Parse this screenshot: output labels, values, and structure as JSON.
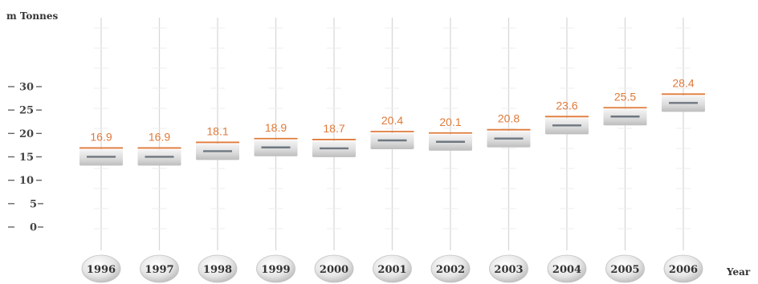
{
  "chart_data": {
    "type": "bar",
    "ylabel": "m Tonnes",
    "xlabel": "Year",
    "categories": [
      "1996",
      "1997",
      "1998",
      "1999",
      "2000",
      "2001",
      "2002",
      "2003",
      "2004",
      "2005",
      "2006"
    ],
    "values": [
      16.9,
      16.9,
      18.1,
      18.9,
      18.7,
      20.4,
      20.1,
      20.8,
      23.6,
      25.5,
      28.4
    ],
    "value_labels": [
      "16.9",
      "16.9",
      "18.1",
      "18.9",
      "18.7",
      "20.4",
      "20.1",
      "20.8",
      "23.6",
      "25.5",
      "28.4"
    ],
    "yticks": [
      0,
      5,
      10,
      15,
      20,
      25,
      30
    ],
    "ytick_labels": [
      "0",
      "5",
      "10",
      "15",
      "20",
      "25",
      "30"
    ],
    "ylim": [
      0,
      30
    ],
    "grid": false,
    "colors": {
      "value_label": "#e07a3a",
      "value_line": "#e07a3a",
      "bar_fill": "#d9d9d9",
      "bar_inner_line": "#6f7780",
      "axis_line": "#d8d8d8"
    }
  }
}
